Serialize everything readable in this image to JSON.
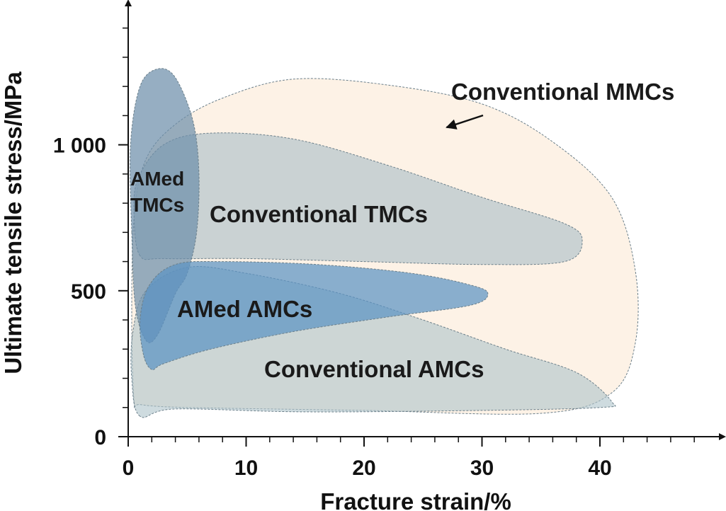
{
  "chart_data": {
    "type": "area",
    "title": "",
    "xlabel": "Fracture strain/%",
    "ylabel": "Ultimate tensile stress/MPa",
    "xlim": [
      0,
      50
    ],
    "ylim": [
      0,
      1450
    ],
    "x_ticks": [
      0,
      10,
      20,
      30,
      40
    ],
    "x_tick_labels": [
      "0",
      "10",
      "20",
      "30",
      "40"
    ],
    "y_ticks": [
      0,
      500,
      1000
    ],
    "y_tick_labels": [
      "0",
      "500",
      "1 000"
    ],
    "grid": false,
    "legend": "none",
    "regions": [
      {
        "name": "Conventional MMCs",
        "color": "#fbe9d6",
        "outline": [
          [
            0.5,
            120
          ],
          [
            0.3,
            400
          ],
          [
            0.5,
            750
          ],
          [
            1.5,
            950
          ],
          [
            4,
            1070
          ],
          [
            8,
            1160
          ],
          [
            14,
            1225
          ],
          [
            22,
            1205
          ],
          [
            30,
            1140
          ],
          [
            36,
            1010
          ],
          [
            41,
            820
          ],
          [
            43,
            570
          ],
          [
            43,
            320
          ],
          [
            41,
            150
          ],
          [
            35,
            80
          ],
          [
            20,
            90
          ],
          [
            5,
            100
          ],
          [
            1,
            110
          ]
        ]
      },
      {
        "name": "Conventional AMCs",
        "color": "#aec3c9",
        "outline": [
          [
            1,
            70
          ],
          [
            0.3,
            200
          ],
          [
            0.4,
            360
          ],
          [
            1.5,
            500
          ],
          [
            5,
            580
          ],
          [
            10,
            560
          ],
          [
            18,
            490
          ],
          [
            25,
            400
          ],
          [
            32,
            300
          ],
          [
            38,
            220
          ],
          [
            41,
            120
          ],
          [
            40,
            100
          ],
          [
            30,
            90
          ],
          [
            15,
            85
          ],
          [
            4,
            95
          ]
        ]
      },
      {
        "name": "Conventional TMCs",
        "color": "#b8c7cc",
        "outline": [
          [
            1,
            620
          ],
          [
            0.5,
            750
          ],
          [
            0.8,
            880
          ],
          [
            3,
            1000
          ],
          [
            7,
            1040
          ],
          [
            14,
            1020
          ],
          [
            22,
            930
          ],
          [
            30,
            820
          ],
          [
            37,
            730
          ],
          [
            38.5,
            670
          ],
          [
            37,
            600
          ],
          [
            30,
            590
          ],
          [
            20,
            600
          ],
          [
            10,
            610
          ],
          [
            3,
            610
          ]
        ]
      },
      {
        "name": "AMed TMCs",
        "color": "#6e8fab",
        "outline": [
          [
            0.3,
            700
          ],
          [
            0.2,
            1000
          ],
          [
            1,
            1200
          ],
          [
            2.5,
            1260
          ],
          [
            4,
            1230
          ],
          [
            5.5,
            1080
          ],
          [
            6,
            900
          ],
          [
            5.8,
            700
          ],
          [
            5,
            560
          ],
          [
            4,
            490
          ],
          [
            2.5,
            350
          ],
          [
            1.5,
            330
          ],
          [
            0.6,
            450
          ]
        ]
      },
      {
        "name": "AMed AMCs",
        "color": "#5b93c4",
        "outline": [
          [
            1.3,
            280
          ],
          [
            1,
            400
          ],
          [
            1.8,
            520
          ],
          [
            4,
            590
          ],
          [
            8,
            600
          ],
          [
            16,
            590
          ],
          [
            24,
            560
          ],
          [
            29,
            520
          ],
          [
            30.5,
            490
          ],
          [
            29,
            450
          ],
          [
            22,
            410
          ],
          [
            14,
            360
          ],
          [
            7,
            300
          ],
          [
            3,
            250
          ],
          [
            2,
            230
          ]
        ]
      }
    ],
    "annotations": [
      {
        "text": "Conventional MMCs",
        "arrow_to": [
          27,
          1050
        ]
      }
    ]
  }
}
